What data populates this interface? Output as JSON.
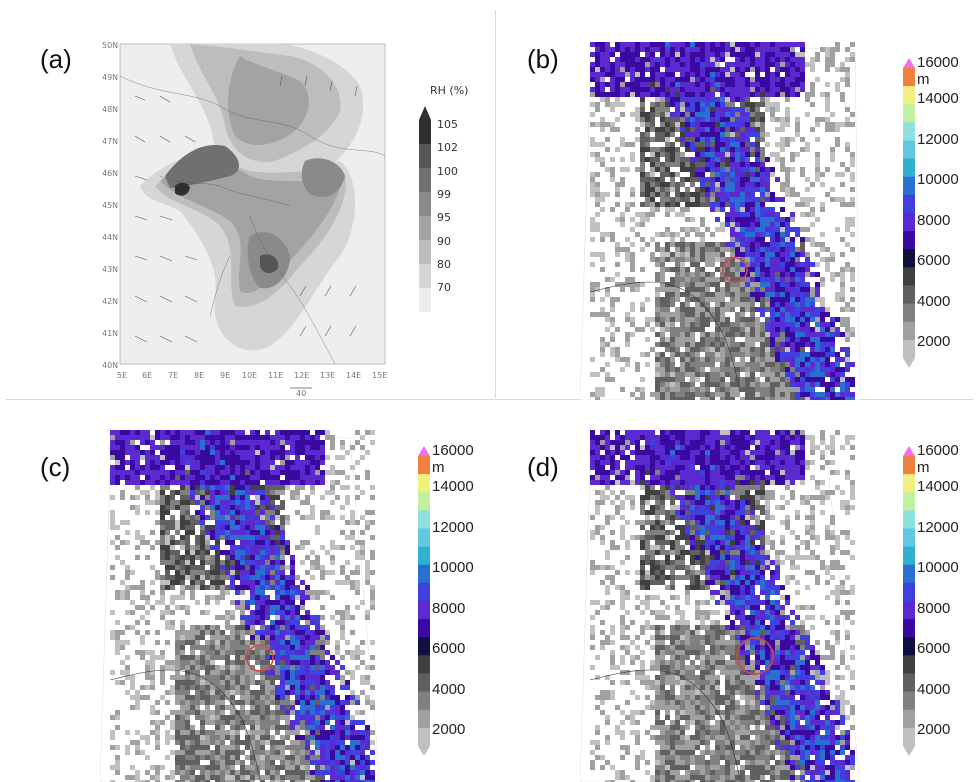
{
  "panels": {
    "a": {
      "label": "(a)"
    },
    "b": {
      "label": "(b)"
    },
    "c": {
      "label": "(c)"
    },
    "d": {
      "label": "(d)"
    }
  },
  "rh_map": {
    "lat_labels": [
      "50N",
      "49N",
      "48N",
      "47N",
      "46N",
      "45N",
      "44N",
      "43N",
      "42N",
      "41N",
      "40N"
    ],
    "lon_labels": [
      "5E",
      "6E",
      "7E",
      "8E",
      "9E",
      "10E",
      "11E",
      "12E",
      "13E",
      "14E",
      "15E"
    ],
    "ref_vector_label": "40",
    "colorbar": {
      "title": "RH  (%)",
      "levels": [
        "105",
        "102",
        "100",
        "99",
        "95",
        "90",
        "80",
        "70"
      ],
      "colors": [
        "#2f2f2f",
        "#555555",
        "#707070",
        "#8a8a8a",
        "#a3a3a3",
        "#bdbdbd",
        "#d6d6d6",
        "#ececec"
      ]
    }
  },
  "height_colorbar": {
    "top_label": "16000 m",
    "labels": [
      "14000",
      "12000",
      "10000",
      "8000",
      "6000",
      "4000",
      "2000"
    ],
    "colors": [
      "#f070f0",
      "#f08040",
      "#f0f080",
      "#c0f0a0",
      "#90e0e0",
      "#60c8e0",
      "#30b0d0",
      "#2a70d0",
      "#4040e0",
      "#5a2ad0",
      "#3a0aa0",
      "#101040",
      "#404040",
      "#606060",
      "#808080",
      "#a0a0a0",
      "#c0c0c0"
    ]
  },
  "colors": {
    "circle": "#d64545",
    "divider": "#d9d9d9"
  }
}
